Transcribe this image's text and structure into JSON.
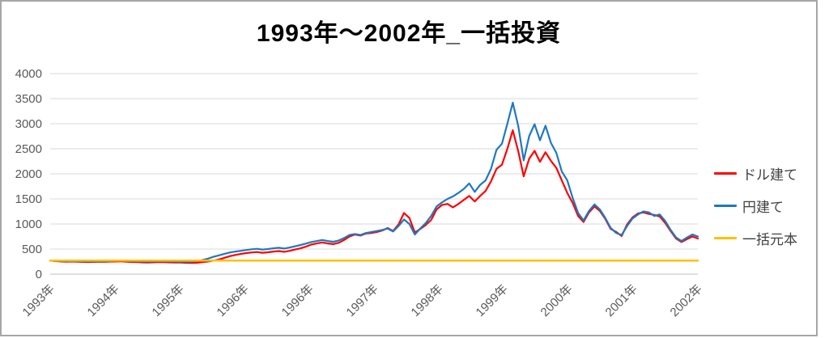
{
  "chart_data": {
    "type": "line",
    "title": "1993年～2002年_一括投資",
    "xlabel": "",
    "ylabel": "",
    "ylim": [
      0,
      4000
    ],
    "y_ticks": [
      0,
      500,
      1000,
      1500,
      2000,
      2500,
      3000,
      3500,
      4000
    ],
    "x_tick_labels": [
      "1993年",
      "1994年",
      "1995年",
      "1996年",
      "1996年",
      "1997年",
      "1998年",
      "1999年",
      "2000年",
      "2001年",
      "2002年"
    ],
    "grid": true,
    "legend_position": "right",
    "series": [
      {
        "id": "dollar",
        "name": "ドル建て",
        "color": "#ff0000",
        "width": 2.2,
        "values": [
          270,
          260,
          252,
          248,
          252,
          248,
          243,
          240,
          244,
          248,
          245,
          250,
          252,
          256,
          248,
          242,
          238,
          234,
          232,
          236,
          240,
          237,
          234,
          232,
          230,
          226,
          222,
          228,
          238,
          252,
          270,
          292,
          325,
          358,
          382,
          402,
          420,
          432,
          440,
          425,
          435,
          450,
          460,
          445,
          465,
          490,
          515,
          550,
          590,
          612,
          632,
          612,
          598,
          625,
          680,
          750,
          790,
          770,
          810,
          820,
          840,
          870,
          920,
          860,
          990,
          1220,
          1120,
          830,
          900,
          980,
          1080,
          1290,
          1380,
          1400,
          1330,
          1400,
          1480,
          1560,
          1450,
          1560,
          1660,
          1850,
          2100,
          2180,
          2500,
          2870,
          2450,
          1950,
          2300,
          2460,
          2240,
          2430,
          2260,
          2120,
          1870,
          1620,
          1420,
          1160,
          1040,
          1230,
          1350,
          1260,
          1100,
          900,
          840,
          760,
          990,
          1130,
          1210,
          1230,
          1200,
          1180,
          1150,
          1020,
          860,
          710,
          640,
          700,
          750,
          710
        ]
      },
      {
        "id": "yen",
        "name": "円建て",
        "color": "#1e78c3",
        "width": 2.2,
        "values": [
          270,
          265,
          260,
          258,
          262,
          258,
          255,
          252,
          256,
          260,
          258,
          262,
          268,
          272,
          265,
          260,
          256,
          252,
          250,
          254,
          258,
          255,
          252,
          250,
          248,
          245,
          250,
          262,
          280,
          310,
          345,
          375,
          405,
          430,
          450,
          465,
          480,
          495,
          505,
          490,
          500,
          515,
          525,
          510,
          530,
          555,
          580,
          610,
          640,
          660,
          680,
          660,
          645,
          670,
          720,
          780,
          800,
          780,
          820,
          840,
          860,
          880,
          910,
          850,
          960,
          1090,
          1000,
          790,
          910,
          1020,
          1160,
          1350,
          1430,
          1500,
          1550,
          1620,
          1700,
          1810,
          1640,
          1780,
          1870,
          2100,
          2480,
          2600,
          3000,
          3420,
          2950,
          2270,
          2750,
          2990,
          2670,
          2960,
          2620,
          2420,
          2050,
          1870,
          1520,
          1220,
          1070,
          1260,
          1390,
          1290,
          1120,
          920,
          820,
          780,
          960,
          1110,
          1190,
          1250,
          1230,
          1160,
          1190,
          1060,
          880,
          730,
          660,
          730,
          790,
          750
        ]
      },
      {
        "id": "principal",
        "name": "一括元本",
        "color": "#ffc000",
        "width": 2.5,
        "values": [
          270,
          270
        ]
      }
    ],
    "colors": {
      "grid": "#d9d9d9",
      "axis": "#bfbfbf",
      "tick_label": "#595959",
      "title": "#000000",
      "frame_border": "#a6a6a6",
      "background": "#ffffff"
    }
  }
}
